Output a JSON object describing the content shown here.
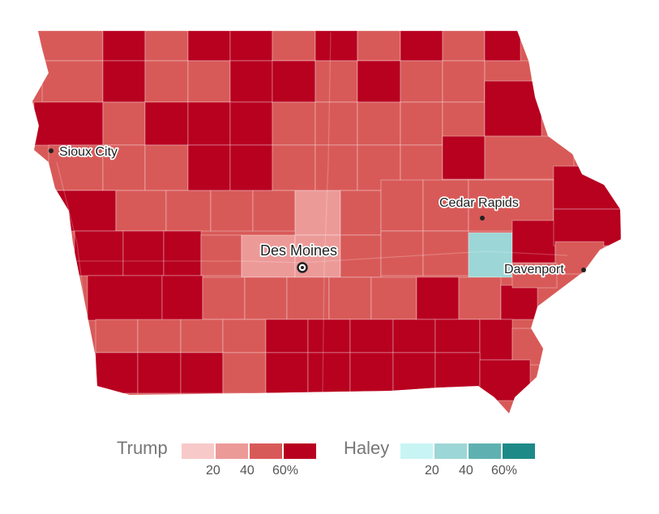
{
  "colors": {
    "trump": [
      "#f8c9c9",
      "#ec9a98",
      "#d85a58",
      "#b8001f"
    ],
    "haley": [
      "#c8f4f4",
      "#9dd6d6",
      "#5fb1b1",
      "#1e8a87"
    ],
    "border": "#ffffff"
  },
  "map": {
    "cities": [
      {
        "name": "Sioux City",
        "type": "city"
      },
      {
        "name": "Cedar Rapids",
        "type": "city"
      },
      {
        "name": "Des Moines",
        "type": "capital"
      },
      {
        "name": "Davenport",
        "type": "city"
      }
    ]
  },
  "legend": {
    "trump": {
      "label": "Trump",
      "ticks": [
        "20",
        "40",
        "60%"
      ]
    },
    "haley": {
      "label": "Haley",
      "ticks": [
        "20",
        "40",
        "60%"
      ]
    }
  }
}
